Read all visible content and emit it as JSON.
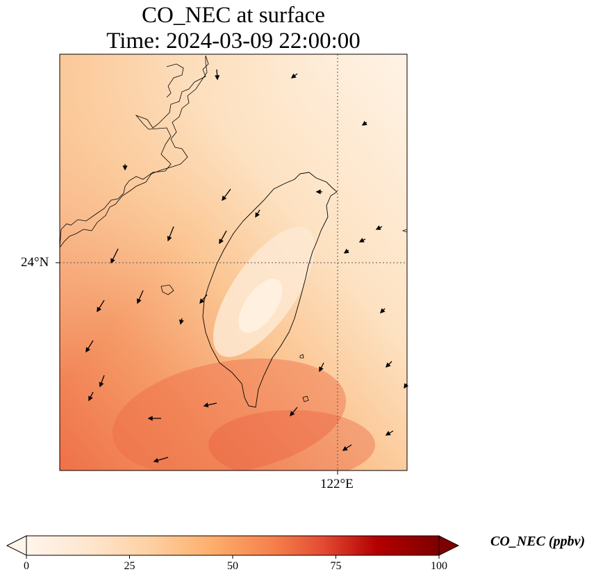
{
  "title": {
    "line1": "CO_NEC at surface",
    "line2": "Time: 2024-03-09 22:00:00"
  },
  "map": {
    "lat_label": "24°N",
    "lon_label": "122°E",
    "colormap": [
      "#fff5eb",
      "#fdd0a2",
      "#fd8d3c",
      "#e34a33",
      "#b30000",
      "#7f0000"
    ]
  },
  "colorbar": {
    "label": "CO_NEC (ppbv)",
    "min": 0,
    "max": 100,
    "ticks": [
      "0",
      "25",
      "50",
      "75",
      "100"
    ],
    "colors": [
      "#fff5eb",
      "#fee6ce",
      "#fdd0a2",
      "#fdae6b",
      "#f16913",
      "#d94801",
      "#b30000",
      "#7f0000"
    ]
  }
}
